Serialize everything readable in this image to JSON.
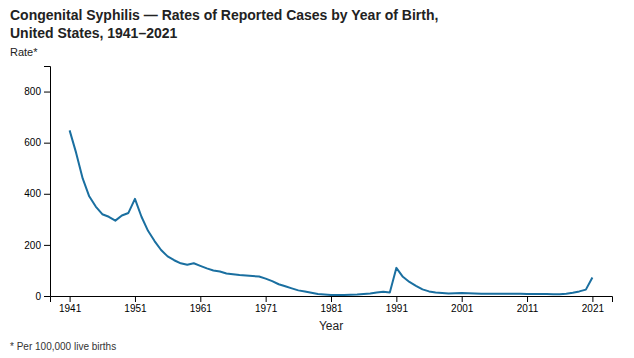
{
  "chart_data": {
    "type": "line",
    "title": "Congenital Syphilis — Rates of Reported Cases by Year of Birth,",
    "subtitle": "United States, 1941–2021",
    "x_label": "Year",
    "y_label": "Rate*",
    "annotations": [
      "* Per 100,000 live births"
    ],
    "color": "#1a6fa0",
    "grid": false,
    "xlim": [
      1938,
      2024
    ],
    "xticks": [
      1941,
      1951,
      1961,
      1971,
      1981,
      1991,
      2001,
      2011,
      2021
    ],
    "ylim": [
      0,
      900
    ],
    "yticks": [
      0,
      200,
      400,
      600,
      800
    ],
    "x": [
      1941,
      1942,
      1943,
      1944,
      1945,
      1946,
      1947,
      1948,
      1949,
      1950,
      1951,
      1952,
      1953,
      1954,
      1955,
      1956,
      1957,
      1958,
      1959,
      1960,
      1961,
      1962,
      1963,
      1964,
      1965,
      1966,
      1967,
      1968,
      1969,
      1970,
      1971,
      1972,
      1973,
      1974,
      1975,
      1976,
      1977,
      1978,
      1979,
      1980,
      1981,
      1982,
      1983,
      1984,
      1985,
      1986,
      1987,
      1988,
      1989,
      1990,
      1991,
      1992,
      1993,
      1994,
      1995,
      1996,
      1997,
      1998,
      1999,
      2000,
      2001,
      2002,
      2003,
      2004,
      2005,
      2006,
      2007,
      2008,
      2009,
      2010,
      2011,
      2012,
      2013,
      2014,
      2015,
      2016,
      2017,
      2018,
      2019,
      2020,
      2021
    ],
    "values": [
      648,
      560,
      460,
      390,
      350,
      320,
      310,
      295,
      315,
      325,
      380,
      310,
      255,
      215,
      180,
      155,
      140,
      128,
      122,
      128,
      118,
      108,
      100,
      96,
      88,
      85,
      82,
      80,
      78,
      76,
      68,
      58,
      46,
      38,
      30,
      22,
      18,
      13,
      8,
      6,
      4,
      4,
      4,
      5,
      6,
      8,
      10,
      14,
      17,
      14,
      110,
      75,
      55,
      40,
      26,
      18,
      14,
      12,
      10,
      11,
      12,
      11,
      10,
      9,
      9,
      9,
      9,
      9,
      9,
      9,
      8,
      8,
      8,
      8,
      7,
      7,
      9,
      13,
      18,
      25,
      72
    ]
  }
}
